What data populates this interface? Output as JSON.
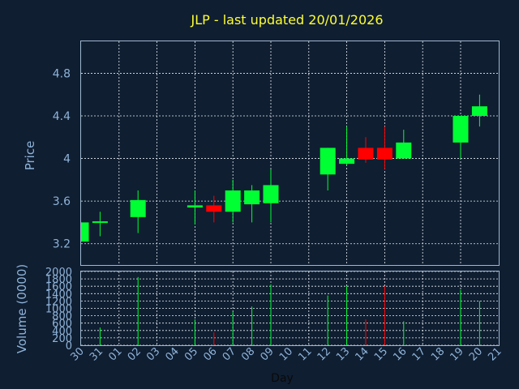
{
  "chart_data": {
    "type": "candlestick",
    "title": "JLP - last updated 20/01/2026",
    "ylabel": "Price",
    "volume_label": "Volume (0000)",
    "xlabel": "Day",
    "ylim": [
      3.0,
      5.1
    ],
    "yticks": [
      "3.2",
      "3.6",
      "4",
      "4.4",
      "4.8"
    ],
    "volume_ylim": [
      0,
      2000
    ],
    "volume_ticks": [
      "0",
      "200",
      "400",
      "600",
      "800",
      "1000",
      "1200",
      "1400",
      "1600",
      "1800",
      "2000"
    ],
    "day_labels": [
      "30",
      "31",
      "01",
      "02",
      "03",
      "04",
      "05",
      "06",
      "07",
      "08",
      "09",
      "10",
      "11",
      "12",
      "13",
      "14",
      "15",
      "16",
      "17",
      "18",
      "19",
      "20",
      "21"
    ],
    "grid": true,
    "colors": {
      "up": "#00ff33",
      "down": "#ff0000",
      "background": "#0f1e31",
      "title": "#ffff33",
      "text": "#8fb3d9"
    },
    "candles": [
      {
        "day": "30",
        "open": 3.22,
        "high": 3.4,
        "low": 3.22,
        "close": 3.4,
        "volume": 0
      },
      {
        "day": "31",
        "open": 3.4,
        "high": 3.5,
        "low": 3.27,
        "close": 3.41,
        "volume": 480
      },
      {
        "day": "02",
        "open": 3.45,
        "high": 3.7,
        "low": 3.3,
        "close": 3.61,
        "volume": 1850
      },
      {
        "day": "05",
        "open": 3.54,
        "high": 3.7,
        "low": 3.38,
        "close": 3.56,
        "volume": 700
      },
      {
        "day": "06",
        "open": 3.56,
        "high": 3.65,
        "low": 3.4,
        "close": 3.5,
        "volume": 350
      },
      {
        "day": "07",
        "open": 3.5,
        "high": 3.8,
        "low": 3.4,
        "close": 3.7,
        "volume": 900
      },
      {
        "day": "08",
        "open": 3.57,
        "high": 3.75,
        "low": 3.4,
        "close": 3.7,
        "volume": 1050
      },
      {
        "day": "09",
        "open": 3.58,
        "high": 3.9,
        "low": 3.4,
        "close": 3.75,
        "volume": 1650
      },
      {
        "day": "12",
        "open": 3.85,
        "high": 4.1,
        "low": 3.7,
        "close": 4.1,
        "volume": 1350
      },
      {
        "day": "13",
        "open": 3.95,
        "high": 4.3,
        "low": 3.94,
        "close": 4.0,
        "volume": 1600
      },
      {
        "day": "14",
        "open": 4.1,
        "high": 4.2,
        "low": 3.96,
        "close": 3.99,
        "volume": 700
      },
      {
        "day": "15",
        "open": 4.1,
        "high": 4.3,
        "low": 3.9,
        "close": 3.99,
        "volume": 1600
      },
      {
        "day": "16",
        "open": 4.0,
        "high": 4.27,
        "low": 4.0,
        "close": 4.15,
        "volume": 650
      },
      {
        "day": "19",
        "open": 4.15,
        "high": 4.4,
        "low": 4.0,
        "close": 4.4,
        "volume": 1500
      },
      {
        "day": "20",
        "open": 4.4,
        "high": 4.6,
        "low": 4.3,
        "close": 4.49,
        "volume": 1200
      }
    ]
  }
}
